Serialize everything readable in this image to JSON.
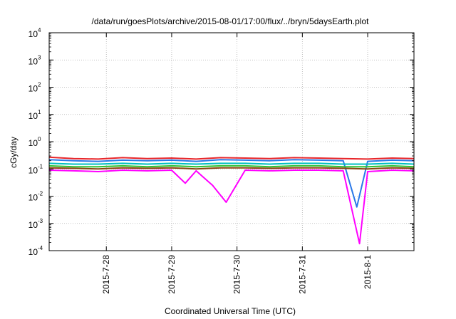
{
  "chart_data": {
    "type": "line",
    "title": "/data/run/goesPlots/archive/2015-08-01/17:00/flux/../bryn/5daysEarth.plot",
    "xlabel": "Coordinated Universal Time (UTC)",
    "ylabel": "cGy/day",
    "yscale": "log",
    "ylim": [
      0.0001,
      10000
    ],
    "xlim": [
      "2015-07-27 03:00",
      "2015-08-01 17:00"
    ],
    "grid": true,
    "legend": "none",
    "y_tick_labels": [
      {
        "base": "10",
        "exp": "-4"
      },
      {
        "base": "10",
        "exp": "-3"
      },
      {
        "base": "10",
        "exp": "-2"
      },
      {
        "base": "10",
        "exp": "-1"
      },
      {
        "base": "10",
        "exp": "0"
      },
      {
        "base": "10",
        "exp": "1"
      },
      {
        "base": "10",
        "exp": "2"
      },
      {
        "base": "10",
        "exp": "3"
      },
      {
        "base": "10",
        "exp": "4"
      }
    ],
    "x_ticks": [
      "2015-7-28",
      "2015-7-29",
      "2015-7-30",
      "2015-7-31",
      "2015-8-1"
    ],
    "series": [
      {
        "color": "#e8262a",
        "x": [
          "2015-07-27 03:00",
          "2015-07-27 12:00",
          "2015-07-27 21:00",
          "2015-07-28 06:00",
          "2015-07-28 15:00",
          "2015-07-29 00:00",
          "2015-07-29 09:00",
          "2015-07-29 18:00",
          "2015-07-30 03:00",
          "2015-07-30 12:00",
          "2015-07-30 21:00",
          "2015-07-31 06:00",
          "2015-07-31 15:00",
          "2015-08-01 00:00",
          "2015-08-01 09:00",
          "2015-08-01 17:00"
        ],
        "y": [
          0.27,
          0.24,
          0.23,
          0.26,
          0.24,
          0.25,
          0.23,
          0.26,
          0.25,
          0.24,
          0.26,
          0.25,
          0.24,
          0.23,
          0.25,
          0.24
        ]
      },
      {
        "color": "#2a78e8",
        "x": [
          "2015-07-27 03:00",
          "2015-07-27 12:00",
          "2015-07-27 21:00",
          "2015-07-28 06:00",
          "2015-07-28 15:00",
          "2015-07-29 00:00",
          "2015-07-29 09:00",
          "2015-07-29 18:00",
          "2015-07-30 03:00",
          "2015-07-30 12:00",
          "2015-07-30 21:00",
          "2015-07-31 06:00",
          "2015-07-31 15:00",
          "2015-07-31 20:00",
          "2015-08-01 00:00",
          "2015-08-01 09:00",
          "2015-08-01 17:00"
        ],
        "y": [
          0.22,
          0.2,
          0.19,
          0.21,
          0.2,
          0.21,
          0.19,
          0.22,
          0.21,
          0.2,
          0.22,
          0.21,
          0.2,
          0.004,
          0.19,
          0.21,
          0.2
        ]
      },
      {
        "color": "#00c0c0",
        "x": [
          "2015-07-27 03:00",
          "2015-07-27 12:00",
          "2015-07-27 21:00",
          "2015-07-28 06:00",
          "2015-07-28 15:00",
          "2015-07-29 00:00",
          "2015-07-29 09:00",
          "2015-07-29 18:00",
          "2015-07-30 03:00",
          "2015-07-30 12:00",
          "2015-07-30 21:00",
          "2015-07-31 06:00",
          "2015-07-31 15:00",
          "2015-08-01 00:00",
          "2015-08-01 09:00",
          "2015-08-01 17:00"
        ],
        "y": [
          0.16,
          0.15,
          0.15,
          0.16,
          0.15,
          0.16,
          0.15,
          0.16,
          0.16,
          0.15,
          0.16,
          0.16,
          0.15,
          0.15,
          0.16,
          0.15
        ]
      },
      {
        "color": "#30c030",
        "x": [
          "2015-07-27 03:00",
          "2015-07-27 12:00",
          "2015-07-27 21:00",
          "2015-07-28 06:00",
          "2015-07-28 15:00",
          "2015-07-29 00:00",
          "2015-07-29 09:00",
          "2015-07-29 18:00",
          "2015-07-30 03:00",
          "2015-07-30 12:00",
          "2015-07-30 21:00",
          "2015-07-31 06:00",
          "2015-07-31 15:00",
          "2015-08-01 00:00",
          "2015-08-01 09:00",
          "2015-08-01 17:00"
        ],
        "y": [
          0.13,
          0.12,
          0.12,
          0.13,
          0.12,
          0.13,
          0.12,
          0.13,
          0.13,
          0.12,
          0.13,
          0.13,
          0.12,
          0.12,
          0.13,
          0.12
        ]
      },
      {
        "color": "#8b4513",
        "x": [
          "2015-07-27 03:00",
          "2015-07-27 12:00",
          "2015-07-27 21:00",
          "2015-07-28 06:00",
          "2015-07-28 15:00",
          "2015-07-29 00:00",
          "2015-07-29 09:00",
          "2015-07-29 18:00",
          "2015-07-30 03:00",
          "2015-07-30 12:00",
          "2015-07-30 21:00",
          "2015-07-31 06:00",
          "2015-07-31 15:00",
          "2015-08-01 00:00",
          "2015-08-01 09:00",
          "2015-08-01 17:00"
        ],
        "y": [
          0.11,
          0.105,
          0.1,
          0.11,
          0.105,
          0.11,
          0.1,
          0.11,
          0.11,
          0.105,
          0.11,
          0.11,
          0.105,
          0.1,
          0.11,
          0.105
        ]
      },
      {
        "color": "#ff00ff",
        "x": [
          "2015-07-27 03:00",
          "2015-07-27 12:00",
          "2015-07-27 21:00",
          "2015-07-28 06:00",
          "2015-07-28 15:00",
          "2015-07-29 00:00",
          "2015-07-29 05:00",
          "2015-07-29 09:00",
          "2015-07-29 15:00",
          "2015-07-29 20:00",
          "2015-07-30 03:00",
          "2015-07-30 12:00",
          "2015-07-30 21:00",
          "2015-07-31 06:00",
          "2015-07-31 15:00",
          "2015-07-31 21:00",
          "2015-08-01 00:00",
          "2015-08-01 09:00",
          "2015-08-01 17:00"
        ],
        "y": [
          0.09,
          0.085,
          0.08,
          0.09,
          0.085,
          0.09,
          0.03,
          0.085,
          0.025,
          0.006,
          0.09,
          0.085,
          0.09,
          0.09,
          0.085,
          0.00018,
          0.08,
          0.09,
          0.085
        ]
      }
    ]
  }
}
